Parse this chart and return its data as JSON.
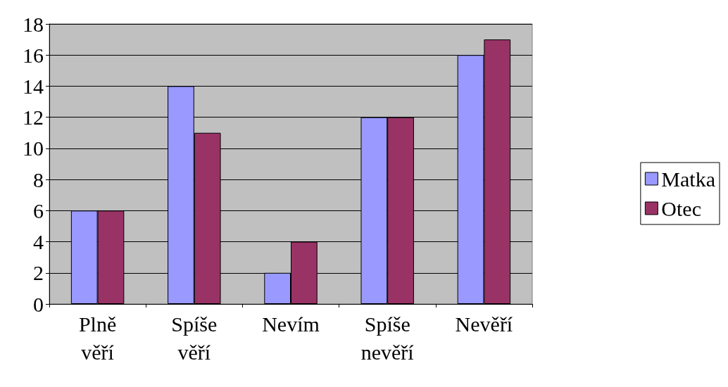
{
  "chart_data": {
    "type": "bar",
    "categories": [
      "Plně věří",
      "Spíše věří",
      "Nevím",
      "Spíše nevěří",
      "Nevěří"
    ],
    "series": [
      {
        "name": "Matka",
        "color": "#9999ff",
        "values": [
          6,
          14,
          2,
          12,
          16
        ]
      },
      {
        "name": "Otec",
        "color": "#993366",
        "values": [
          6,
          11,
          4,
          12,
          17
        ]
      }
    ],
    "ylim": [
      0,
      18
    ],
    "yticks": [
      0,
      2,
      4,
      6,
      8,
      10,
      12,
      14,
      16,
      18
    ],
    "grid": "y",
    "legend": "right"
  }
}
